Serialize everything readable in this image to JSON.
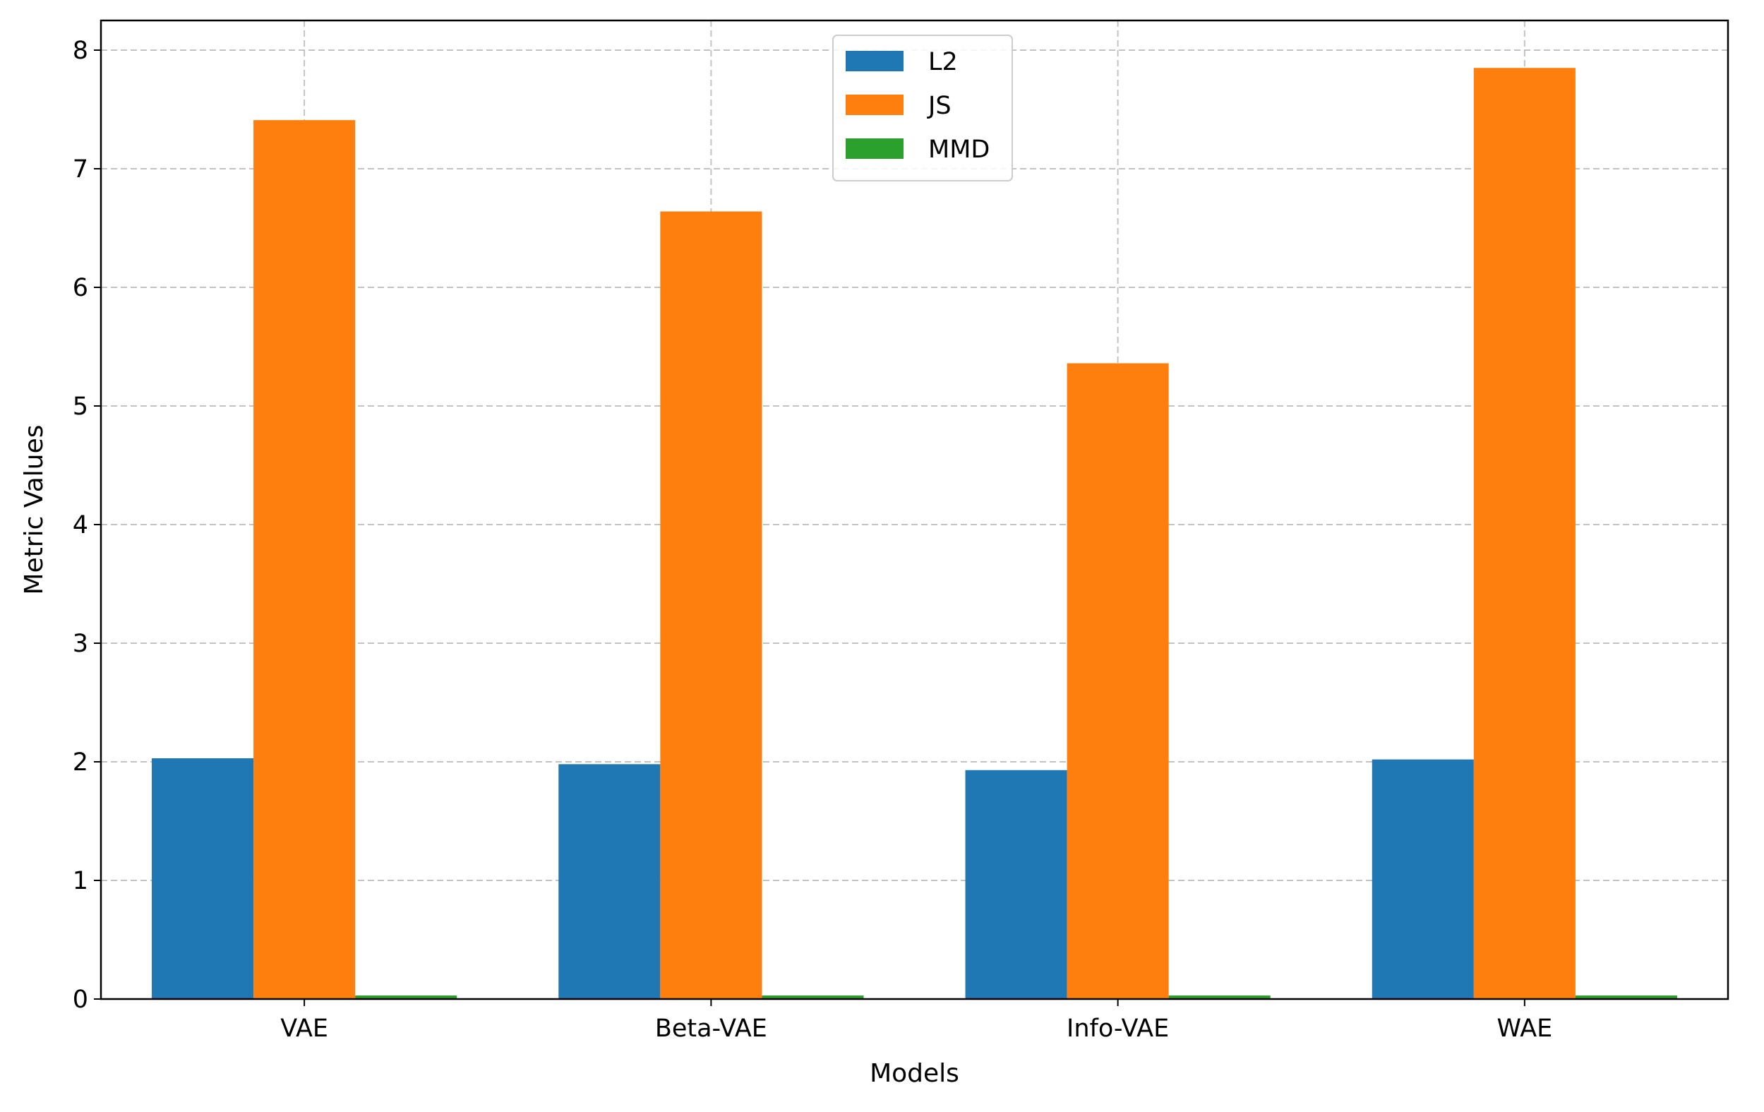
{
  "chart_data": {
    "type": "bar",
    "title": "",
    "xlabel": "Models",
    "ylabel": "Metric Values",
    "categories": [
      "VAE",
      "Beta-VAE",
      "Info-VAE",
      "WAE"
    ],
    "series": [
      {
        "name": "L2",
        "color": "#1f77b4",
        "values": [
          2.03,
          1.98,
          1.93,
          2.02
        ]
      },
      {
        "name": "JS",
        "color": "#ff7f0e",
        "values": [
          7.41,
          6.64,
          5.36,
          7.85
        ]
      },
      {
        "name": "MMD",
        "color": "#2ca02c",
        "values": [
          0.03,
          0.03,
          0.03,
          0.03
        ]
      }
    ],
    "ylim": [
      0,
      8.25
    ],
    "yticks": [
      0,
      1,
      2,
      3,
      4,
      5,
      6,
      7,
      8
    ],
    "grid": true,
    "legend_position": "top-center"
  }
}
